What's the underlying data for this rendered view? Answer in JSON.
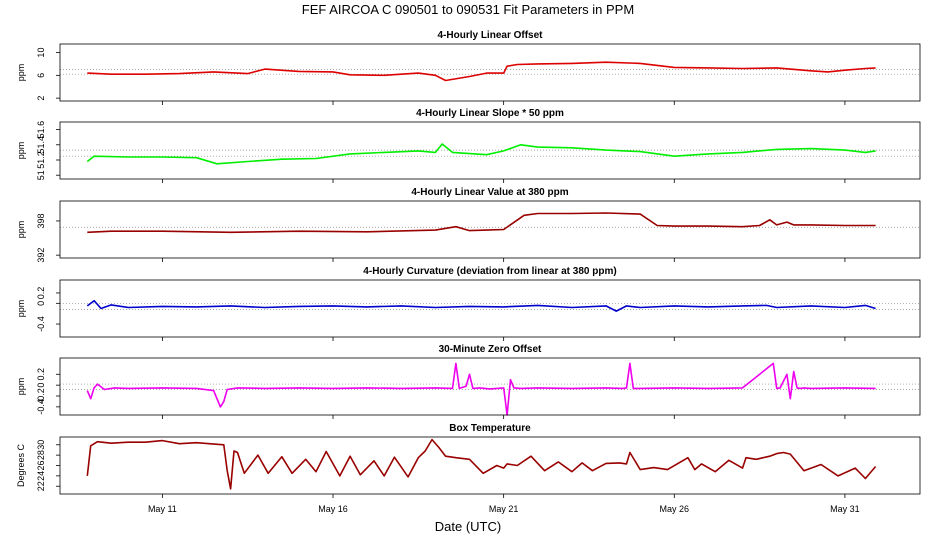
{
  "title": "FEF   AIRCOA C   090501 to 090531   Fit Parameters in PPM",
  "x_axis": {
    "label": "Date (UTC)",
    "ticks": [
      {
        "day": 11,
        "label": "May 11"
      },
      {
        "day": 16,
        "label": "May 16"
      },
      {
        "day": 21,
        "label": "May 21"
      },
      {
        "day": 26,
        "label": "May 26"
      },
      {
        "day": 31,
        "label": "May 31"
      }
    ]
  },
  "chart_data": [
    {
      "type": "line",
      "title": "4-Hourly Linear Offset",
      "ylabel": "ppm",
      "color": "#dd0000",
      "ylim": [
        1.5,
        11.5
      ],
      "yticks": [
        2,
        6,
        10
      ],
      "reference_lines": [
        7.0,
        6.2
      ],
      "series": [
        {
          "x": [
            8.8,
            9.5,
            10.5,
            11.5,
            12.5,
            13.5,
            14.0,
            15.0,
            16.0,
            16.5,
            17.5,
            18.5,
            19.0,
            19.3,
            20.0,
            20.5,
            21.0,
            21.1,
            21.4,
            22.0,
            23.0,
            24.0,
            25.0,
            26.0,
            27.0,
            28.0,
            29.0,
            30.0,
            30.5,
            31.0,
            31.6,
            31.9
          ],
          "y": [
            6.4,
            6.2,
            6.2,
            6.3,
            6.6,
            6.3,
            7.1,
            6.7,
            6.6,
            6.1,
            6.0,
            6.4,
            6.0,
            5.1,
            5.8,
            6.4,
            6.4,
            7.6,
            7.9,
            8.0,
            8.1,
            8.3,
            8.1,
            7.4,
            7.3,
            7.2,
            7.3,
            6.8,
            6.6,
            6.9,
            7.2,
            7.3
          ]
        }
      ]
    },
    {
      "type": "line",
      "title": "4-Hourly Linear Slope * 50 ppm",
      "ylabel": "ppm",
      "color": "#00ee00",
      "ylim": [
        50.95,
        51.7
      ],
      "yticks": [
        51.0,
        51.2,
        51.4,
        51.6
      ],
      "reference_lines": [
        51.33,
        51.25
      ],
      "series": [
        {
          "x": [
            8.8,
            9.0,
            10.0,
            11.0,
            12.0,
            12.6,
            13.5,
            14.5,
            15.5,
            16.5,
            17.5,
            18.5,
            19.0,
            19.2,
            19.5,
            20.5,
            21.0,
            21.5,
            22.0,
            23.0,
            24.0,
            25.0,
            26.0,
            27.0,
            28.0,
            29.0,
            30.0,
            31.0,
            31.6,
            31.9
          ],
          "y": [
            51.18,
            51.25,
            51.24,
            51.24,
            51.23,
            51.15,
            51.18,
            51.21,
            51.22,
            51.28,
            51.3,
            51.32,
            51.3,
            51.41,
            51.3,
            51.27,
            51.32,
            51.4,
            51.37,
            51.36,
            51.33,
            51.31,
            51.25,
            51.28,
            51.3,
            51.34,
            51.35,
            51.33,
            51.3,
            51.32
          ]
        }
      ]
    },
    {
      "type": "line",
      "title": "4-Hourly Linear Value at 380 ppm",
      "ylabel": "ppm",
      "color": "#990000",
      "ylim": [
        391.5,
        401.5
      ],
      "yticks": [
        392,
        398
      ],
      "reference_lines": [
        396.9
      ],
      "series": [
        {
          "x": [
            8.8,
            9.5,
            11.0,
            13.0,
            15.0,
            17.0,
            19.0,
            19.6,
            20.0,
            20.5,
            21.0,
            21.6,
            22.0,
            23.0,
            24.0,
            25.0,
            25.5,
            26.0,
            27.0,
            28.0,
            28.5,
            28.8,
            29.0,
            29.3,
            29.5,
            30.0,
            31.0,
            31.9
          ],
          "y": [
            396.0,
            396.2,
            396.2,
            396.0,
            396.2,
            396.1,
            396.4,
            397.0,
            396.3,
            396.4,
            396.5,
            399.0,
            399.3,
            399.3,
            399.4,
            399.2,
            397.2,
            397.1,
            397.1,
            397.0,
            397.2,
            398.2,
            397.3,
            397.8,
            397.3,
            397.3,
            397.2,
            397.2
          ]
        }
      ]
    },
    {
      "type": "line",
      "title": "4-Hourly Curvature (deviation from linear at 380 ppm)",
      "ylabel": "ppm",
      "color": "#0000cc",
      "ylim": [
        -0.65,
        0.45
      ],
      "yticks": [
        -0.4,
        0.0,
        0.2
      ],
      "reference_lines": [
        0.0,
        -0.12
      ],
      "series": [
        {
          "x": [
            8.8,
            9.0,
            9.2,
            9.5,
            10.0,
            11.0,
            12.0,
            13.0,
            14.0,
            15.0,
            16.0,
            17.0,
            18.0,
            19.0,
            20.0,
            21.0,
            22.0,
            23.0,
            24.0,
            24.3,
            24.6,
            25.0,
            26.0,
            27.0,
            28.0,
            28.7,
            29.0,
            30.0,
            31.0,
            31.6,
            31.9
          ],
          "y": [
            -0.05,
            0.05,
            -0.1,
            -0.03,
            -0.08,
            -0.06,
            -0.07,
            -0.05,
            -0.08,
            -0.06,
            -0.05,
            -0.07,
            -0.05,
            -0.08,
            -0.06,
            -0.07,
            -0.04,
            -0.08,
            -0.05,
            -0.15,
            -0.05,
            -0.08,
            -0.05,
            -0.07,
            -0.05,
            -0.04,
            -0.08,
            -0.05,
            -0.08,
            -0.04,
            -0.1
          ]
        }
      ]
    },
    {
      "type": "line",
      "title": "30-Minute Zero Offset",
      "ylabel": "ppm",
      "color": "#ee00ee",
      "ylim": [
        -0.55,
        0.5
      ],
      "yticks": [
        -0.4,
        -0.2,
        0.0,
        0.2
      ],
      "reference_lines": [
        0.02,
        -0.08
      ],
      "series": [
        {
          "x": [
            8.8,
            8.9,
            9.0,
            9.1,
            9.3,
            9.6,
            10.0,
            11.0,
            12.0,
            12.5,
            12.7,
            12.8,
            12.9,
            13.2,
            14.0,
            15.0,
            16.0,
            17.0,
            18.0,
            19.0,
            19.5,
            19.6,
            19.7,
            19.9,
            20.0,
            20.1,
            20.3,
            20.6,
            21.0,
            21.1,
            21.2,
            21.3,
            21.5,
            22.0,
            23.0,
            24.0,
            24.5,
            24.6,
            24.7,
            24.8,
            25.0,
            26.0,
            27.0,
            28.0,
            28.9,
            29.0,
            29.1,
            29.3,
            29.4,
            29.5,
            29.6,
            29.7,
            29.8,
            30.0,
            31.0,
            31.9
          ],
          "y": [
            -0.1,
            -0.25,
            -0.05,
            0.02,
            -0.08,
            -0.05,
            -0.06,
            -0.05,
            -0.06,
            -0.1,
            -0.4,
            -0.3,
            -0.08,
            -0.05,
            -0.06,
            -0.05,
            -0.06,
            -0.05,
            -0.06,
            -0.05,
            -0.06,
            0.4,
            -0.06,
            -0.02,
            0.2,
            -0.06,
            -0.05,
            -0.07,
            -0.05,
            -0.55,
            0.1,
            -0.05,
            -0.06,
            -0.05,
            -0.06,
            -0.05,
            -0.06,
            -0.05,
            0.4,
            -0.06,
            -0.06,
            -0.05,
            -0.06,
            -0.05,
            0.4,
            -0.06,
            -0.05,
            0.2,
            -0.25,
            0.25,
            -0.05,
            -0.06,
            -0.05,
            -0.06,
            -0.05,
            -0.06
          ]
        }
      ]
    },
    {
      "type": "line",
      "title": "Box Temperature",
      "ylabel": "Degrees C",
      "color": "#990000",
      "ylim": [
        20.5,
        31.5
      ],
      "yticks": [
        22,
        24,
        26,
        28,
        30
      ],
      "reference_lines": [],
      "series": [
        {
          "x": [
            8.8,
            8.9,
            9.1,
            9.5,
            10.0,
            10.5,
            11.0,
            11.5,
            12.0,
            12.8,
            12.9,
            13.0,
            13.1,
            13.2,
            13.4,
            13.8,
            14.1,
            14.5,
            14.8,
            15.2,
            15.5,
            15.8,
            16.2,
            16.5,
            16.8,
            17.2,
            17.5,
            17.8,
            18.2,
            18.5,
            18.7,
            18.9,
            19.1,
            19.3,
            19.6,
            20.0,
            20.4,
            20.8,
            21.0,
            21.1,
            21.4,
            21.8,
            22.2,
            22.6,
            23.0,
            23.3,
            23.6,
            24.0,
            24.4,
            24.6,
            24.7,
            25.0,
            25.4,
            25.8,
            26.4,
            26.6,
            26.8,
            27.2,
            27.6,
            28.0,
            28.1,
            28.4,
            28.8,
            29.0,
            29.2,
            29.4,
            29.8,
            30.3,
            30.8,
            31.3,
            31.6,
            31.9
          ],
          "y": [
            24.0,
            29.8,
            30.6,
            30.3,
            30.5,
            30.5,
            30.8,
            30.2,
            30.4,
            30.0,
            25.0,
            21.5,
            28.8,
            28.5,
            24.5,
            28.0,
            24.5,
            27.7,
            24.5,
            27.2,
            24.8,
            28.7,
            24.0,
            27.8,
            24.2,
            26.9,
            24.0,
            27.6,
            23.8,
            27.5,
            28.8,
            31.0,
            29.5,
            27.8,
            27.5,
            27.2,
            24.5,
            26.0,
            25.5,
            26.3,
            26.0,
            27.8,
            25.0,
            26.7,
            24.8,
            26.5,
            25.0,
            26.4,
            26.5,
            26.3,
            28.5,
            25.2,
            25.6,
            25.2,
            27.5,
            25.2,
            26.3,
            24.8,
            27.0,
            25.5,
            27.5,
            27.2,
            27.8,
            28.3,
            28.5,
            28.2,
            25.0,
            26.2,
            24.0,
            25.5,
            23.5,
            25.8
          ]
        }
      ]
    }
  ]
}
